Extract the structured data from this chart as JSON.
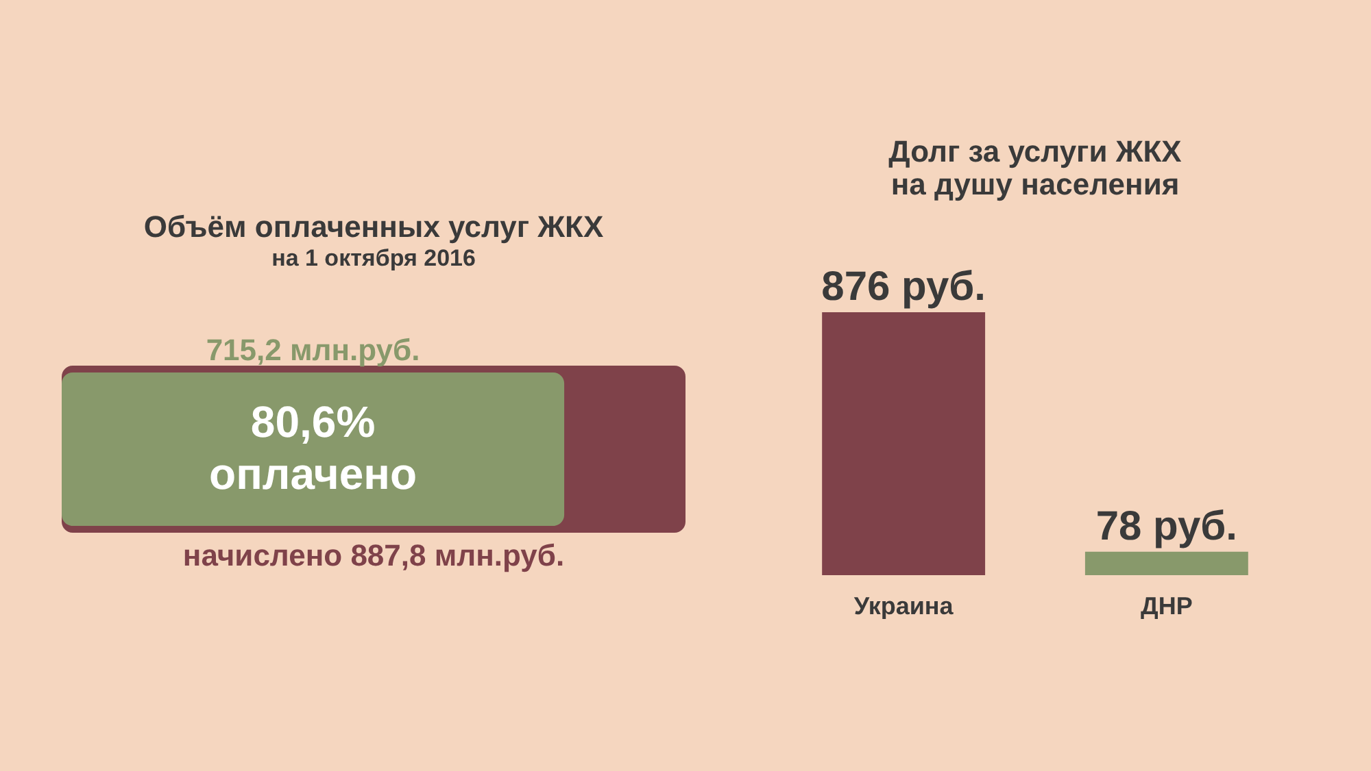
{
  "chart_data": [
    {
      "type": "bar",
      "orientation": "horizontal",
      "title": "Объём оплаченных услуг ЖКХ",
      "subtitle": "на 1 октября 2016",
      "categories": [
        null
      ],
      "series": [
        {
          "color": "#7f424a",
          "values": [
            887.8
          ],
          "value_labels": [
            "начислено 887,8 млн.руб."
          ]
        },
        {
          "color": "#88996b",
          "values": [
            715.2
          ],
          "value_labels": [
            "715,2 млн.руб."
          ]
        }
      ],
      "annotations": [
        "80,6%",
        "оплачено"
      ]
    },
    {
      "type": "bar",
      "title": "Долг за услуги ЖКХ\nна душу населения",
      "categories": [
        "Украина",
        "ДНР"
      ],
      "values": [
        876,
        78
      ],
      "colors": [
        "#7f424a",
        "#88996b"
      ],
      "value_labels": [
        "876 руб.",
        "78 руб."
      ]
    }
  ]
}
